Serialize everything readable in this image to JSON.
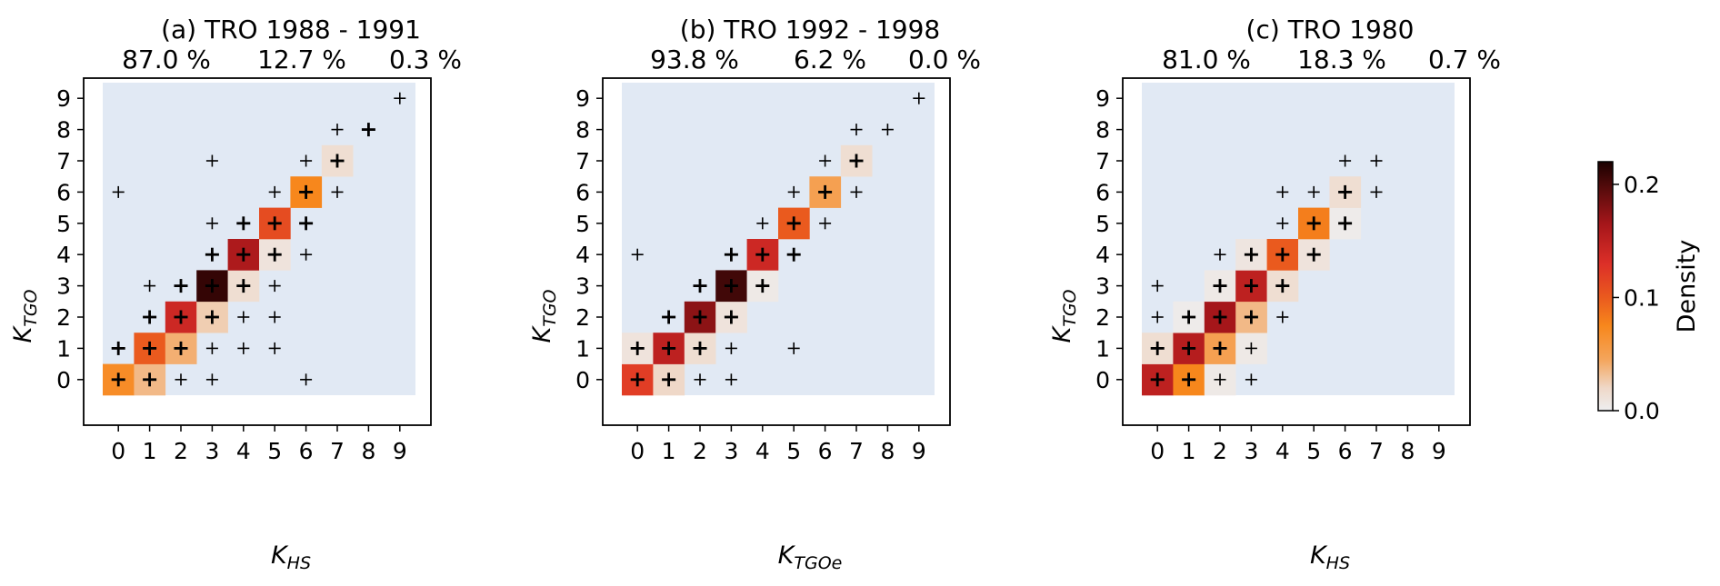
{
  "chart_data": {
    "type": "heatmap",
    "colormap": {
      "name": "density",
      "stops": [
        {
          "v": 0.0,
          "color": "#eeeef0"
        },
        {
          "v": 0.02,
          "color": "#efd8c8"
        },
        {
          "v": 0.045,
          "color": "#f4a55c"
        },
        {
          "v": 0.075,
          "color": "#f7871c"
        },
        {
          "v": 0.1,
          "color": "#ea5a1e"
        },
        {
          "v": 0.13,
          "color": "#dc2f28"
        },
        {
          "v": 0.165,
          "color": "#a5161a"
        },
        {
          "v": 0.2,
          "color": "#4e0a0a"
        },
        {
          "v": 0.22,
          "color": "#1a0000"
        }
      ],
      "background_color": "#e1e9f4"
    },
    "colorbar": {
      "label": "Density",
      "min": 0.0,
      "max": 0.22,
      "ticks": [
        "0.0",
        "0.1",
        "0.2"
      ],
      "tick_values": [
        0.0,
        0.1,
        0.2
      ]
    },
    "panels": [
      {
        "title": "(a) TRO 1988 - 1991",
        "percentages": [
          "87.0 %",
          "12.7 %",
          "0.3 %"
        ],
        "xlabel": {
          "main": "K",
          "sub": "HS"
        },
        "ylabel": {
          "main": "K",
          "sub": "TGO"
        },
        "xticks": [
          "0",
          "1",
          "2",
          "3",
          "4",
          "5",
          "6",
          "7",
          "8",
          "9"
        ],
        "yticks": [
          "0",
          "1",
          "2",
          "3",
          "4",
          "5",
          "6",
          "7",
          "8",
          "9"
        ],
        "cells": [
          {
            "x": 0,
            "y": 0,
            "v": 0.07
          },
          {
            "x": 1,
            "y": 0,
            "v": 0.035
          },
          {
            "x": 1,
            "y": 1,
            "v": 0.1
          },
          {
            "x": 2,
            "y": 1,
            "v": 0.04
          },
          {
            "x": 2,
            "y": 2,
            "v": 0.14
          },
          {
            "x": 3,
            "y": 2,
            "v": 0.025
          },
          {
            "x": 3,
            "y": 3,
            "v": 0.21
          },
          {
            "x": 4,
            "y": 3,
            "v": 0.015
          },
          {
            "x": 4,
            "y": 4,
            "v": 0.16
          },
          {
            "x": 5,
            "y": 4,
            "v": 0.01
          },
          {
            "x": 5,
            "y": 5,
            "v": 0.11
          },
          {
            "x": 6,
            "y": 6,
            "v": 0.075
          },
          {
            "x": 7,
            "y": 7,
            "v": 0.015
          }
        ],
        "markers": [
          {
            "x": 0,
            "y": 0,
            "bold": true
          },
          {
            "x": 1,
            "y": 0,
            "bold": true
          },
          {
            "x": 2,
            "y": 0
          },
          {
            "x": 3,
            "y": 0
          },
          {
            "x": 6,
            "y": 0
          },
          {
            "x": 0,
            "y": 1,
            "bold": true
          },
          {
            "x": 1,
            "y": 1,
            "bold": true
          },
          {
            "x": 2,
            "y": 1,
            "bold": true
          },
          {
            "x": 3,
            "y": 1
          },
          {
            "x": 4,
            "y": 1
          },
          {
            "x": 5,
            "y": 1
          },
          {
            "x": 1,
            "y": 2,
            "bold": true
          },
          {
            "x": 2,
            "y": 2,
            "bold": true
          },
          {
            "x": 3,
            "y": 2,
            "bold": true
          },
          {
            "x": 4,
            "y": 2
          },
          {
            "x": 5,
            "y": 2
          },
          {
            "x": 1,
            "y": 3
          },
          {
            "x": 2,
            "y": 3,
            "bold": true
          },
          {
            "x": 3,
            "y": 3,
            "bold": true
          },
          {
            "x": 4,
            "y": 3,
            "bold": true
          },
          {
            "x": 5,
            "y": 3
          },
          {
            "x": 3,
            "y": 4,
            "bold": true
          },
          {
            "x": 4,
            "y": 4,
            "bold": true
          },
          {
            "x": 5,
            "y": 4,
            "bold": true
          },
          {
            "x": 6,
            "y": 4
          },
          {
            "x": 3,
            "y": 5
          },
          {
            "x": 4,
            "y": 5,
            "bold": true
          },
          {
            "x": 5,
            "y": 5,
            "bold": true
          },
          {
            "x": 6,
            "y": 5,
            "bold": true
          },
          {
            "x": 0,
            "y": 6
          },
          {
            "x": 5,
            "y": 6
          },
          {
            "x": 6,
            "y": 6,
            "bold": true
          },
          {
            "x": 7,
            "y": 6
          },
          {
            "x": 3,
            "y": 7
          },
          {
            "x": 6,
            "y": 7
          },
          {
            "x": 7,
            "y": 7,
            "bold": true
          },
          {
            "x": 7,
            "y": 8
          },
          {
            "x": 8,
            "y": 8,
            "bold": true
          },
          {
            "x": 9,
            "y": 9
          }
        ]
      },
      {
        "title": "(b) TRO 1992 - 1998",
        "percentages": [
          "93.8 %",
          "6.2 %",
          "0.0 %"
        ],
        "xlabel": {
          "main": "K",
          "sub": "TGOe"
        },
        "ylabel": {
          "main": "K",
          "sub": "TGO"
        },
        "xticks": [
          "0",
          "1",
          "2",
          "3",
          "4",
          "5",
          "6",
          "7",
          "8",
          "9"
        ],
        "yticks": [
          "0",
          "1",
          "2",
          "3",
          "4",
          "5",
          "6",
          "7",
          "8",
          "9"
        ],
        "cells": [
          {
            "x": 0,
            "y": 0,
            "v": 0.12
          },
          {
            "x": 1,
            "y": 0,
            "v": 0.02
          },
          {
            "x": 0,
            "y": 1,
            "v": 0.01
          },
          {
            "x": 1,
            "y": 1,
            "v": 0.15
          },
          {
            "x": 2,
            "y": 1,
            "v": 0.015
          },
          {
            "x": 2,
            "y": 2,
            "v": 0.175
          },
          {
            "x": 3,
            "y": 2,
            "v": 0.01
          },
          {
            "x": 3,
            "y": 3,
            "v": 0.205
          },
          {
            "x": 4,
            "y": 3,
            "v": 0.005
          },
          {
            "x": 4,
            "y": 4,
            "v": 0.14
          },
          {
            "x": 5,
            "y": 5,
            "v": 0.1
          },
          {
            "x": 6,
            "y": 6,
            "v": 0.05
          },
          {
            "x": 7,
            "y": 7,
            "v": 0.015
          }
        ],
        "markers": [
          {
            "x": 0,
            "y": 0,
            "bold": true
          },
          {
            "x": 1,
            "y": 0,
            "bold": true
          },
          {
            "x": 2,
            "y": 0
          },
          {
            "x": 3,
            "y": 0
          },
          {
            "x": 0,
            "y": 1,
            "bold": true
          },
          {
            "x": 1,
            "y": 1,
            "bold": true
          },
          {
            "x": 2,
            "y": 1,
            "bold": true
          },
          {
            "x": 3,
            "y": 1
          },
          {
            "x": 5,
            "y": 1
          },
          {
            "x": 1,
            "y": 2,
            "bold": true
          },
          {
            "x": 2,
            "y": 2,
            "bold": true
          },
          {
            "x": 3,
            "y": 2,
            "bold": true
          },
          {
            "x": 2,
            "y": 3,
            "bold": true
          },
          {
            "x": 3,
            "y": 3,
            "bold": true
          },
          {
            "x": 4,
            "y": 3,
            "bold": true
          },
          {
            "x": 0,
            "y": 4
          },
          {
            "x": 3,
            "y": 4,
            "bold": true
          },
          {
            "x": 4,
            "y": 4,
            "bold": true
          },
          {
            "x": 5,
            "y": 4,
            "bold": true
          },
          {
            "x": 4,
            "y": 5
          },
          {
            "x": 5,
            "y": 5,
            "bold": true
          },
          {
            "x": 6,
            "y": 5
          },
          {
            "x": 5,
            "y": 6
          },
          {
            "x": 6,
            "y": 6,
            "bold": true
          },
          {
            "x": 7,
            "y": 6
          },
          {
            "x": 6,
            "y": 7
          },
          {
            "x": 7,
            "y": 7,
            "bold": true
          },
          {
            "x": 7,
            "y": 8
          },
          {
            "x": 8,
            "y": 8
          },
          {
            "x": 9,
            "y": 9
          }
        ]
      },
      {
        "title": "(c) TRO 1980",
        "percentages": [
          "81.0 %",
          "18.3 %",
          "0.7 %"
        ],
        "xlabel": {
          "main": "K",
          "sub": "HS"
        },
        "ylabel": {
          "main": "K",
          "sub": "TGO"
        },
        "xticks": [
          "0",
          "1",
          "2",
          "3",
          "4",
          "5",
          "6",
          "7",
          "8",
          "9"
        ],
        "yticks": [
          "0",
          "1",
          "2",
          "3",
          "4",
          "5",
          "6",
          "7",
          "8",
          "9"
        ],
        "cells": [
          {
            "x": 0,
            "y": 0,
            "v": 0.15
          },
          {
            "x": 1,
            "y": 0,
            "v": 0.075
          },
          {
            "x": 2,
            "y": 0,
            "v": 0.005
          },
          {
            "x": 0,
            "y": 1,
            "v": 0.015
          },
          {
            "x": 1,
            "y": 1,
            "v": 0.155
          },
          {
            "x": 2,
            "y": 1,
            "v": 0.05
          },
          {
            "x": 3,
            "y": 1,
            "v": 0.005
          },
          {
            "x": 1,
            "y": 2,
            "v": 0.003
          },
          {
            "x": 2,
            "y": 2,
            "v": 0.165
          },
          {
            "x": 3,
            "y": 2,
            "v": 0.035
          },
          {
            "x": 2,
            "y": 3,
            "v": 0.005
          },
          {
            "x": 3,
            "y": 3,
            "v": 0.15
          },
          {
            "x": 4,
            "y": 3,
            "v": 0.015
          },
          {
            "x": 3,
            "y": 4,
            "v": 0.008
          },
          {
            "x": 4,
            "y": 4,
            "v": 0.1
          },
          {
            "x": 5,
            "y": 4,
            "v": 0.01
          },
          {
            "x": 5,
            "y": 5,
            "v": 0.08
          },
          {
            "x": 6,
            "y": 5,
            "v": 0.003
          },
          {
            "x": 6,
            "y": 6,
            "v": 0.015
          }
        ],
        "markers": [
          {
            "x": 0,
            "y": 0,
            "bold": true
          },
          {
            "x": 1,
            "y": 0,
            "bold": true
          },
          {
            "x": 2,
            "y": 0
          },
          {
            "x": 3,
            "y": 0
          },
          {
            "x": 0,
            "y": 1,
            "bold": true
          },
          {
            "x": 1,
            "y": 1,
            "bold": true
          },
          {
            "x": 2,
            "y": 1,
            "bold": true
          },
          {
            "x": 3,
            "y": 1
          },
          {
            "x": 0,
            "y": 2
          },
          {
            "x": 1,
            "y": 2,
            "bold": true
          },
          {
            "x": 2,
            "y": 2,
            "bold": true
          },
          {
            "x": 3,
            "y": 2,
            "bold": true
          },
          {
            "x": 4,
            "y": 2
          },
          {
            "x": 0,
            "y": 3
          },
          {
            "x": 2,
            "y": 3,
            "bold": true
          },
          {
            "x": 3,
            "y": 3,
            "bold": true
          },
          {
            "x": 4,
            "y": 3,
            "bold": true
          },
          {
            "x": 2,
            "y": 4
          },
          {
            "x": 3,
            "y": 4,
            "bold": true
          },
          {
            "x": 4,
            "y": 4,
            "bold": true
          },
          {
            "x": 5,
            "y": 4,
            "bold": true
          },
          {
            "x": 4,
            "y": 5
          },
          {
            "x": 5,
            "y": 5,
            "bold": true
          },
          {
            "x": 6,
            "y": 5,
            "bold": true
          },
          {
            "x": 4,
            "y": 6
          },
          {
            "x": 5,
            "y": 6
          },
          {
            "x": 6,
            "y": 6,
            "bold": true
          },
          {
            "x": 7,
            "y": 6
          },
          {
            "x": 6,
            "y": 7
          },
          {
            "x": 7,
            "y": 7
          }
        ]
      }
    ]
  }
}
